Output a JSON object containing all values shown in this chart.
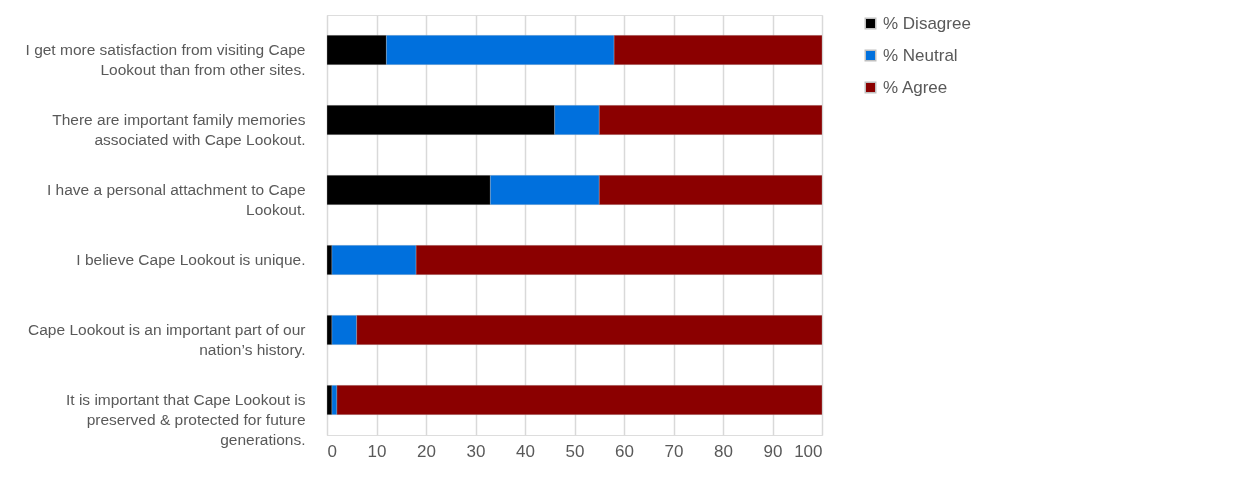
{
  "chart_data": {
    "type": "bar",
    "orientation": "horizontal",
    "stacked": true,
    "categories": [
      "I get more satisfaction from visiting Cape Lookout than from other sites.",
      "There are important family memories associated with Cape Lookout.",
      "I have a personal attachment to Cape Lookout.",
      "I believe Cape Lookout is unique.",
      "Cape Lookout is an important part of our nation’s history.",
      "It is important that Cape Lookout is preserved & protected for future generations."
    ],
    "series": [
      {
        "name": "% Disagree",
        "color": "#000000",
        "values": [
          12,
          46,
          33,
          1,
          1,
          1
        ]
      },
      {
        "name": "% Neutral",
        "color": "#0070dd",
        "values": [
          46,
          9,
          22,
          17,
          5,
          1
        ]
      },
      {
        "name": "% Agree",
        "color": "#8b0000",
        "values": [
          42,
          45,
          45,
          82,
          94,
          98
        ]
      }
    ],
    "xlim": [
      0,
      100
    ],
    "xticks": [
      0,
      10,
      20,
      30,
      40,
      50,
      60,
      70,
      80,
      90,
      100
    ],
    "grid": "x",
    "legend": "right"
  }
}
